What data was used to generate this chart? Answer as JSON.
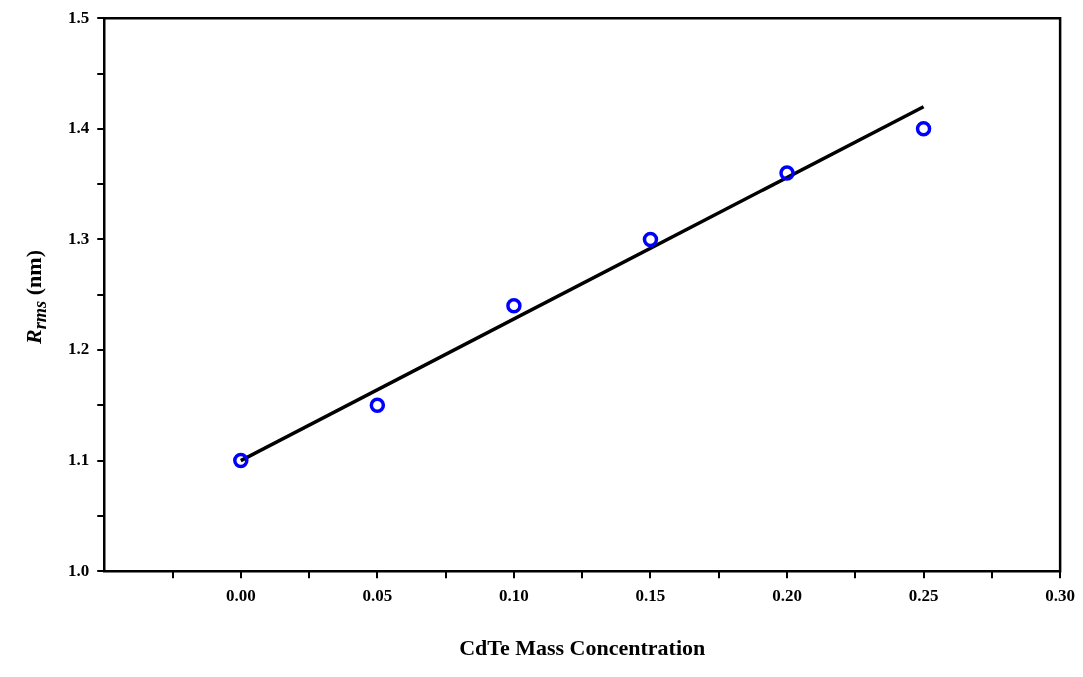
{
  "chart_data": {
    "type": "scatter",
    "xlabel": "CdTe Mass Concentration",
    "ylabel": "R$_{rms}$ (nm)",
    "xlim": [
      -0.05,
      0.3
    ],
    "xticks": [
      {
        "value": -0.025,
        "label": null
      },
      {
        "value": 0,
        "label": "0.00"
      },
      {
        "value": 0.025,
        "label": null
      },
      {
        "value": 0.05,
        "label": "0.05"
      },
      {
        "value": 0.075,
        "label": null
      },
      {
        "value": 0.1,
        "label": "0.10"
      },
      {
        "value": 0.125,
        "label": null
      },
      {
        "value": 0.15,
        "label": "0.15"
      },
      {
        "value": 0.175,
        "label": null
      },
      {
        "value": 0.2,
        "label": "0.20"
      },
      {
        "value": 0.225,
        "label": null
      },
      {
        "value": 0.25,
        "label": "0.25"
      },
      {
        "value": 0.275,
        "label": null
      },
      {
        "value": 0.3,
        "label": "0.30"
      }
    ],
    "ylim": [
      1.0,
      1.5
    ],
    "yticks": [
      {
        "value": 1,
        "label": "1.0"
      },
      {
        "value": 1.05,
        "label": null
      },
      1.1,
      {
        "value": 1.15,
        "label": null
      },
      1.2,
      {
        "value": 1.25,
        "label": null
      },
      1.3,
      {
        "value": 1.35,
        "label": null
      },
      1.4,
      {
        "value": 1.45,
        "label": null
      },
      1.5
    ],
    "grid": false,
    "legend": false,
    "series": [
      {
        "type": "scatter",
        "color": "#0000ff",
        "marker": "circle",
        "x": [
          0,
          0.05,
          0.1,
          0.15,
          0.2,
          0.25
        ],
        "values": [
          1.1,
          1.15,
          1.24,
          1.3,
          1.36,
          1.4
        ]
      },
      {
        "type": "line",
        "color": "#000000",
        "marker": "none",
        "line_style": "solid",
        "x": [
          0,
          0.25
        ],
        "values": [
          1.1,
          1.42
        ]
      }
    ]
  }
}
